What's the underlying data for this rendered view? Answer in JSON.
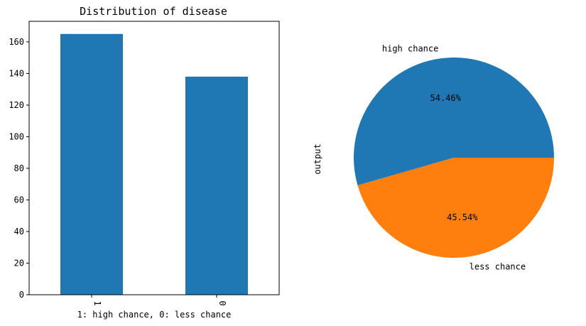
{
  "chart_data": [
    {
      "type": "bar",
      "title": "Distribution of disease",
      "xlabel": "1: high chance, 0: less chance",
      "ylabel": "",
      "categories": [
        "1",
        "0"
      ],
      "values": [
        165,
        138
      ],
      "ylim": [
        0,
        173
      ],
      "yticks": [
        0,
        20,
        40,
        60,
        80,
        100,
        120,
        140,
        160
      ],
      "ytick_labels": [
        "0",
        "20",
        "40",
        "60",
        "80",
        "100",
        "120",
        "140",
        "160"
      ],
      "bar_color": "#1f77b4",
      "xtick_rotation": "vertical",
      "grid": false,
      "legend": "none"
    },
    {
      "type": "pie",
      "title": "",
      "ylabel": "output",
      "labels": [
        "high chance",
        "less chance"
      ],
      "values": [
        165,
        138
      ],
      "percent_labels": [
        "54.46%",
        "45.54%"
      ],
      "colors": [
        "#1f77b4",
        "#ff7f0e"
      ],
      "start_angle": 0,
      "legend": "none"
    }
  ]
}
